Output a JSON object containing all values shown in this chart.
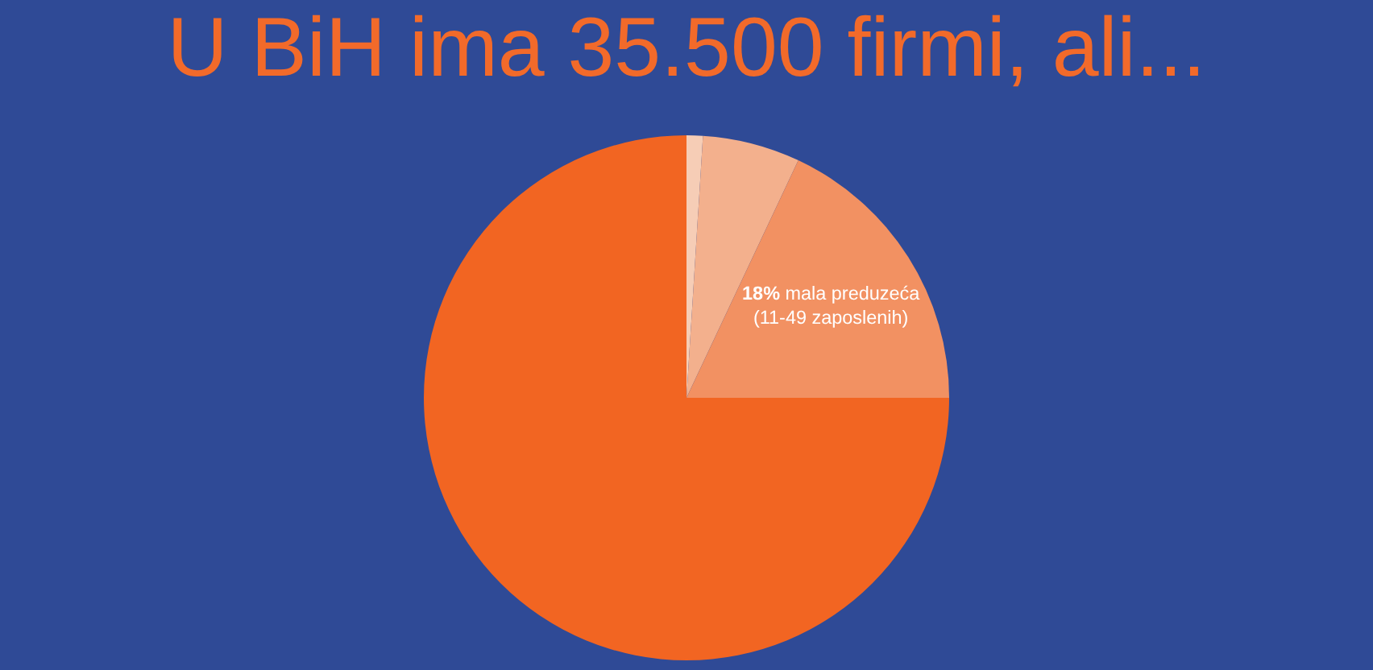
{
  "chart_data": {
    "type": "pie",
    "title": "U BiH ima 35.500 firmi, ali...",
    "categories": [
      null,
      null,
      "mala preduzeća (11-49 zaposlenih)",
      null
    ],
    "values": [
      1,
      6,
      18,
      75
    ],
    "colors": [
      "#f6cdb6",
      "#f3b08d",
      "#f29162",
      "#f26522"
    ],
    "value_labels": [
      null,
      null,
      "18%",
      null
    ]
  }
}
